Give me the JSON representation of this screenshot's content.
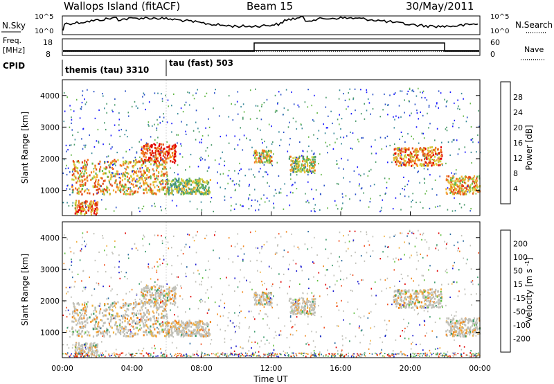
{
  "header": {
    "station": "Wallops Island (fitACF)",
    "beam": "Beam 15",
    "date": "30/May/2011"
  },
  "nsky_panel": {
    "left_label": "N.Sky",
    "right_label": "N.Search",
    "left_ticks": [
      "10^5",
      "10^0"
    ],
    "right_ticks": [
      "10^5",
      "10^0"
    ]
  },
  "freq_panel": {
    "left_label_line1": "Freq.",
    "left_label_line2": "[MHz]",
    "right_label": "Nave",
    "left_ticks": [
      "18",
      "8"
    ],
    "right_ticks": [
      "60",
      "0"
    ]
  },
  "cpid_panel": {
    "label": "CPID",
    "modes": [
      {
        "name": "themis (tau) 3310",
        "start_hour": 0
      },
      {
        "name": "tau (fast) 503",
        "start_hour": 6
      }
    ]
  },
  "colors": {
    "power_scale": [
      "#1a1aff",
      "#2a52c8",
      "#3a8a9a",
      "#4a9a6a",
      "#66b84a",
      "#c8d040",
      "#f0b030",
      "#f07820",
      "#e04818",
      "#e00000"
    ],
    "velocity_scale": [
      "#e00000",
      "#f05020",
      "#f08820",
      "#f0b040",
      "#c0c0b8",
      "#60c040",
      "#3a9a6a",
      "#2a6aa0",
      "#1a1ad0"
    ],
    "ground_scatter": "#c0c0b8"
  },
  "chart_data": [
    {
      "type": "heatmap",
      "name_ref": "power",
      "ylabel": "Slant Range [km]",
      "xlim_hours": [
        0,
        24
      ],
      "ylim_km": [
        200,
        4500
      ],
      "yticks": [
        "1000",
        "2000",
        "3000",
        "4000"
      ],
      "colorbar": {
        "label": "Power [dB]",
        "ticks": [
          "4",
          "8",
          "12",
          "16",
          "20",
          "24",
          "28"
        ],
        "range": [
          0,
          30
        ]
      },
      "features": [
        {
          "t0": 0.7,
          "t1": 2.0,
          "r0": 250,
          "r1": 700,
          "level": 22
        },
        {
          "t0": 0.5,
          "t1": 6.0,
          "r0": 900,
          "r1": 2000,
          "level": 20
        },
        {
          "t0": 4.5,
          "t1": 6.5,
          "r0": 1900,
          "r1": 2500,
          "level": 26
        },
        {
          "t0": 6.0,
          "t1": 8.5,
          "r0": 900,
          "r1": 1400,
          "level": 14
        },
        {
          "t0": 11.0,
          "t1": 12.0,
          "r0": 1900,
          "r1": 2300,
          "level": 18
        },
        {
          "t0": 13.0,
          "t1": 14.5,
          "r0": 1600,
          "r1": 2100,
          "level": 16
        },
        {
          "t0": 19.0,
          "t1": 21.8,
          "r0": 1800,
          "r1": 2400,
          "level": 22
        },
        {
          "t0": 22.0,
          "t1": 24.0,
          "r0": 900,
          "r1": 1500,
          "level": 20
        }
      ]
    },
    {
      "type": "heatmap",
      "name_ref": "velocity",
      "ylabel": "Slant Range [km]",
      "xlabel": "Time UT",
      "xlim_hours": [
        0,
        24
      ],
      "ylim_km": [
        200,
        4500
      ],
      "xticks": [
        "00:00",
        "04:00",
        "08:00",
        "12:00",
        "16:00",
        "20:00",
        "00:00"
      ],
      "yticks": [
        "1000",
        "2000",
        "3000",
        "4000"
      ],
      "colorbar": {
        "label": "Velocity [m s^-1]",
        "ticks": [
          "-200",
          "-100",
          "-50",
          "-15",
          "15",
          "50",
          "100",
          "200"
        ],
        "range": [
          -250,
          250
        ]
      }
    }
  ]
}
